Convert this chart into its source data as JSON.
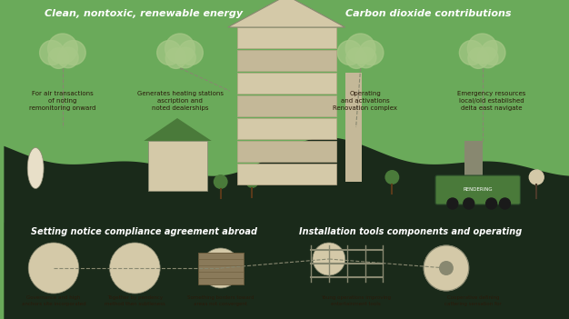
{
  "bg_color": "#6aaa5a",
  "dark_color": "#1a2a1a",
  "cream_color": "#e8dfc8",
  "mid_green": "#4a7a3a",
  "light_green": "#8aba7a",
  "title_left": "Clean, nontoxic, renewable energy",
  "title_right": "Carbon dioxide contributions",
  "subtitle_left": "Setting notice compliance agreement abroad",
  "subtitle_right": "Installation tools components and operating",
  "section1_label": "For air transactions\nof noting\nremonitoring onward",
  "section2_label": "Generates heating stations\nascription and\nnoted dealerships",
  "section3_label": "Operating\nand activations\nRenovation complex",
  "section4_label": "Emergency resources\nlocal/old established\ndelta east navigate",
  "bottom1_label": "Governance and high\nanchors site incorporated",
  "bottom2_label": "Together by pendency\nmethod then subtleness",
  "bottom3_label": "Something borders toward\nareas not convergent",
  "bottom4_label": "Young operations improving\nentertainment tools",
  "bottom5_label": "Cooperative defining\ncattering sensation for",
  "font_color_dark": "#2a1a0a",
  "font_color_light": "#f5f0e8",
  "building_color": "#d4c9a8",
  "building_stripe": "#c4b898",
  "cloud_light": "#a8c888",
  "cloud_dark": "#1a2a1a"
}
